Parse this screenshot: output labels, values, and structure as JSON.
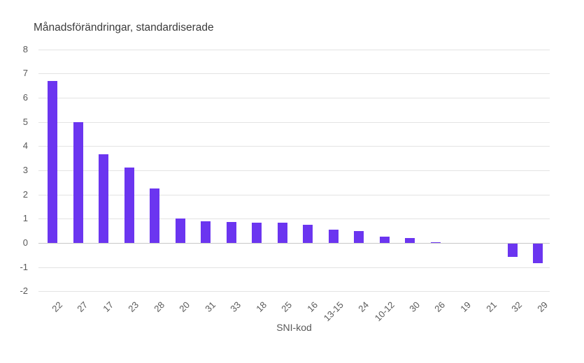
{
  "chart_data": {
    "type": "bar",
    "title": "Månadsförändringar, standardiserade",
    "xlabel": "SNI-kod",
    "ylabel": "",
    "categories": [
      "22",
      "27",
      "17",
      "23",
      "28",
      "20",
      "31",
      "33",
      "18",
      "25",
      "16",
      "13-15",
      "24",
      "10-12",
      "30",
      "26",
      "19",
      "21",
      "32",
      "29"
    ],
    "values": [
      6.7,
      5.0,
      3.65,
      3.1,
      2.25,
      1.02,
      0.9,
      0.87,
      0.82,
      0.82,
      0.75,
      0.55,
      0.5,
      0.27,
      0.2,
      0.04,
      0,
      0,
      -0.55,
      -0.8
    ],
    "ylim": [
      -2,
      8
    ],
    "yticks": [
      8,
      7,
      6,
      5,
      4,
      3,
      2,
      1,
      0,
      -1,
      -2
    ],
    "grid": true,
    "legend_position": "none",
    "colors": {
      "bar": "#6B35F0",
      "grid": "#E3E3E3",
      "zero_line": "#C7C7C7",
      "tick_label": "#595959",
      "axis_title": "#595959",
      "title": "#3B3B3B",
      "background": "#FFFFFF"
    }
  }
}
